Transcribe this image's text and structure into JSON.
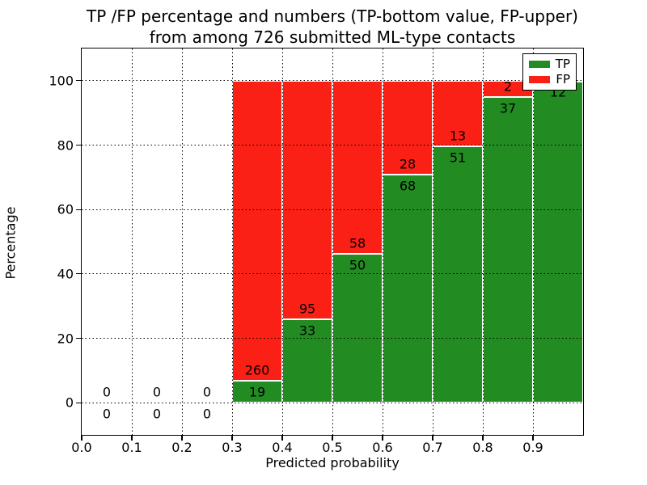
{
  "figure": {
    "title_line1": "TP /FP percentage and numbers (TP-bottom value, FP-upper)",
    "title_line2": "from among 726 submitted ML-type contacts",
    "xlabel": "Predicted probability",
    "ylabel": "Percentage"
  },
  "legend": {
    "position": "upper-right",
    "items": [
      {
        "label": "TP",
        "color": "#228b22"
      },
      {
        "label": "FP",
        "color": "#fa2016"
      }
    ]
  },
  "chart_data": {
    "type": "bar",
    "stacked": true,
    "title": "TP /FP percentage and numbers (TP-bottom value, FP-upper) from among 726 submitted ML-type contacts",
    "xlabel": "Predicted probability",
    "ylabel": "Percentage",
    "total_contacts": 726,
    "grid": "dotted",
    "legend_position": "upper right",
    "xlim": [
      0.0,
      1.0
    ],
    "ylim": [
      -10,
      110
    ],
    "xticks": [
      "0.0",
      "0.1",
      "0.2",
      "0.3",
      "0.4",
      "0.5",
      "0.6",
      "0.7",
      "0.8",
      "0.9"
    ],
    "yticks": [
      "0",
      "20",
      "40",
      "60",
      "80",
      "100"
    ],
    "colors": {
      "tp": "#228b22",
      "fp": "#fa2016",
      "bar_edge": "#ffffff",
      "grid": "#000000"
    },
    "note": "bars are normalized to 100% per bin; TP bottom segment, FP upper segment; counts shown as labels",
    "bins": [
      {
        "x0": 0.0,
        "x1": 0.1,
        "tp": 0,
        "fp": 0
      },
      {
        "x0": 0.1,
        "x1": 0.2,
        "tp": 0,
        "fp": 0
      },
      {
        "x0": 0.2,
        "x1": 0.3,
        "tp": 0,
        "fp": 0
      },
      {
        "x0": 0.3,
        "x1": 0.4,
        "tp": 19,
        "fp": 260
      },
      {
        "x0": 0.4,
        "x1": 0.5,
        "tp": 33,
        "fp": 95
      },
      {
        "x0": 0.5,
        "x1": 0.6,
        "tp": 50,
        "fp": 58
      },
      {
        "x0": 0.6,
        "x1": 0.7,
        "tp": 68,
        "fp": 28
      },
      {
        "x0": 0.7,
        "x1": 0.8,
        "tp": 51,
        "fp": 13
      },
      {
        "x0": 0.8,
        "x1": 0.9,
        "tp": 37,
        "fp": 2
      },
      {
        "x0": 0.9,
        "x1": 1.0,
        "tp": 12,
        "fp": 0
      }
    ]
  }
}
